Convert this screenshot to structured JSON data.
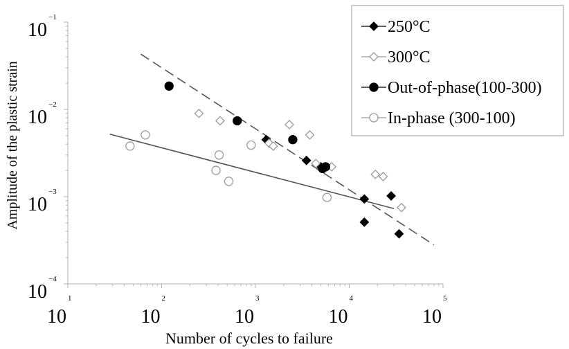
{
  "chart_data": {
    "type": "scatter",
    "xlabel": "Number of cycles to failure",
    "ylabel": "Amplitude of the plastic strain",
    "x_scale": "log",
    "y_scale": "log",
    "xlim": [
      10,
      100000
    ],
    "ylim": [
      0.0001,
      0.1
    ],
    "x_ticks": [
      {
        "base": "10",
        "exp": "1",
        "value": 10
      },
      {
        "base": "10",
        "exp": "2",
        "value": 100
      },
      {
        "base": "10",
        "exp": "3",
        "value": 1000
      },
      {
        "base": "10",
        "exp": "4",
        "value": 10000
      },
      {
        "base": "10",
        "exp": "5",
        "value": 100000
      }
    ],
    "y_ticks": [
      {
        "base": "10",
        "exp": "−1",
        "value": 0.1
      },
      {
        "base": "10",
        "exp": "−2",
        "value": 0.01
      },
      {
        "base": "10",
        "exp": "−3",
        "value": 0.001
      },
      {
        "base": "10",
        "exp": "−4",
        "value": 0.0001
      }
    ],
    "grid": false,
    "legend_position": "top-right",
    "series": [
      {
        "name": "250°C",
        "marker": "diamond-filled",
        "color": "#000000",
        "points": [
          {
            "x": 1300,
            "y": 0.0045
          },
          {
            "x": 3500,
            "y": 0.0026
          },
          {
            "x": 5000,
            "y": 0.0022
          },
          {
            "x": 14500,
            "y": 0.00094
          },
          {
            "x": 28000,
            "y": 0.00102
          },
          {
            "x": 14500,
            "y": 0.00051
          },
          {
            "x": 34000,
            "y": 0.000375
          }
        ]
      },
      {
        "name": "300°C",
        "marker": "diamond-open",
        "color": "#9a9a9a",
        "points": [
          {
            "x": 250,
            "y": 0.009
          },
          {
            "x": 420,
            "y": 0.0074
          },
          {
            "x": 1400,
            "y": 0.0041
          },
          {
            "x": 1550,
            "y": 0.0038
          },
          {
            "x": 2300,
            "y": 0.0067
          },
          {
            "x": 3800,
            "y": 0.0051
          },
          {
            "x": 4400,
            "y": 0.0024
          },
          {
            "x": 6500,
            "y": 0.0022
          },
          {
            "x": 19000,
            "y": 0.0018
          },
          {
            "x": 23000,
            "y": 0.0017
          },
          {
            "x": 36000,
            "y": 0.00075
          }
        ]
      },
      {
        "name": "Out-of-phase(100-300)",
        "marker": "circle-filled",
        "color": "#000000",
        "points": [
          {
            "x": 120,
            "y": 0.0185
          },
          {
            "x": 640,
            "y": 0.0074
          },
          {
            "x": 2500,
            "y": 0.0045
          },
          {
            "x": 5200,
            "y": 0.0021
          },
          {
            "x": 5600,
            "y": 0.0022
          }
        ]
      },
      {
        "name": "In-phase  (300-100)",
        "marker": "circle-open",
        "color": "#9a9a9a",
        "points": [
          {
            "x": 46,
            "y": 0.0038
          },
          {
            "x": 67,
            "y": 0.0051
          },
          {
            "x": 380,
            "y": 0.002
          },
          {
            "x": 410,
            "y": 0.003
          },
          {
            "x": 520,
            "y": 0.0015
          },
          {
            "x": 900,
            "y": 0.0039
          },
          {
            "x": 5800,
            "y": 0.00098
          }
        ]
      }
    ],
    "fit_lines": [
      {
        "style": "dashed",
        "color": "#555555",
        "x": [
          60,
          80000
        ],
        "y": [
          0.043,
          0.00028
        ]
      },
      {
        "style": "solid",
        "color": "#555555",
        "x": [
          28,
          30000
        ],
        "y": [
          0.0052,
          0.00073
        ]
      }
    ]
  }
}
